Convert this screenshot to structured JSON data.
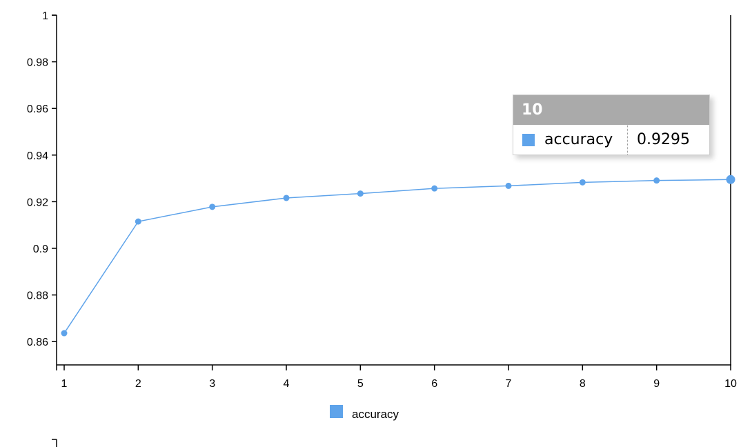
{
  "chart_data": {
    "type": "line",
    "x": [
      1,
      2,
      3,
      4,
      5,
      6,
      7,
      8,
      9,
      10
    ],
    "series": [
      {
        "name": "accuracy",
        "color": "#5ea3ea",
        "values": [
          0.8636,
          0.9115,
          0.9178,
          0.9216,
          0.9235,
          0.9257,
          0.9268,
          0.9283,
          0.9291,
          0.9295
        ]
      }
    ],
    "ylim": [
      0.85,
      1
    ],
    "yticks": [
      "0.86",
      "0.88",
      "0.9",
      "0.92",
      "0.94",
      "0.96",
      "0.98",
      "1"
    ],
    "xticks": [
      "1",
      "2",
      "3",
      "4",
      "5",
      "6",
      "7",
      "8",
      "9",
      "10"
    ],
    "legend_position": "bottom-center",
    "grid": false
  },
  "tooltip": {
    "header": "10",
    "series_name": "accuracy",
    "value": "0.9295"
  }
}
